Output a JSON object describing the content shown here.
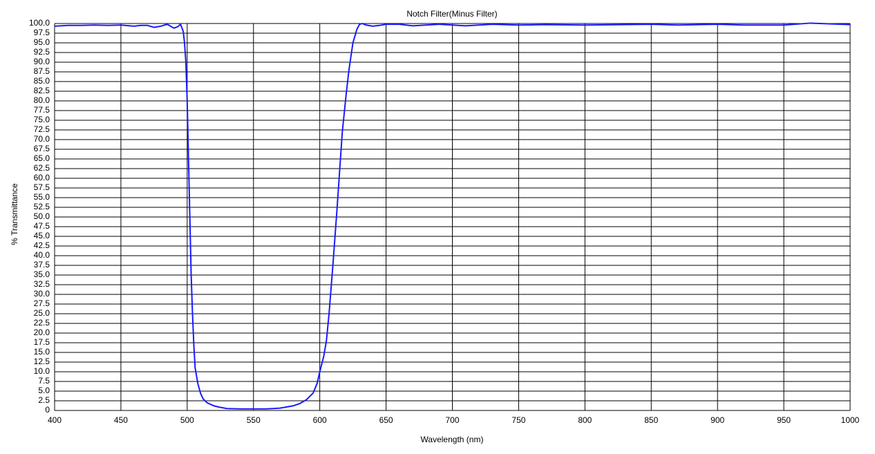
{
  "chart_data": {
    "type": "line",
    "title": "Notch Filter(Minus Filter)",
    "x_label": "Wavelength (nm)",
    "y_label": "% Transmittance",
    "color": "#1a1aff",
    "grid": true,
    "xlim": [
      400,
      1000
    ],
    "ylim": [
      0,
      100
    ],
    "xticks": [
      400,
      450,
      500,
      550,
      600,
      650,
      700,
      750,
      800,
      850,
      900,
      950,
      1000
    ],
    "yticks": [
      0,
      2.5,
      {
        "value": 5,
        "label": "5.0"
      },
      7.5,
      {
        "value": 10,
        "label": "10.0"
      },
      12.5,
      {
        "value": 15,
        "label": "15.0"
      },
      17.5,
      {
        "value": 20,
        "label": "20.0"
      },
      22.5,
      {
        "value": 25,
        "label": "25.0"
      },
      27.5,
      {
        "value": 30,
        "label": "30.0"
      },
      32.5,
      {
        "value": 35,
        "label": "35.0"
      },
      37.5,
      {
        "value": 40,
        "label": "40.0"
      },
      42.5,
      {
        "value": 45,
        "label": "45.0"
      },
      47.5,
      {
        "value": 50,
        "label": "50.0"
      },
      52.5,
      {
        "value": 55,
        "label": "55.0"
      },
      57.5,
      {
        "value": 60,
        "label": "60.0"
      },
      62.5,
      {
        "value": 65,
        "label": "65.0"
      },
      67.5,
      {
        "value": 70,
        "label": "70.0"
      },
      72.5,
      {
        "value": 75,
        "label": "75.0"
      },
      77.5,
      {
        "value": 80,
        "label": "80.0"
      },
      82.5,
      {
        "value": 85,
        "label": "85.0"
      },
      87.5,
      {
        "value": 90,
        "label": "90.0"
      },
      92.5,
      {
        "value": 95,
        "label": "95.0"
      },
      97.5,
      {
        "value": 100,
        "label": "100.0"
      }
    ],
    "x": [
      400,
      410,
      420,
      430,
      440,
      450,
      460,
      465,
      470,
      475,
      480,
      485,
      490,
      493,
      495,
      497,
      498,
      499,
      500,
      501,
      502,
      503,
      504,
      505,
      506,
      508,
      510,
      512,
      515,
      520,
      525,
      530,
      540,
      550,
      560,
      570,
      580,
      585,
      590,
      595,
      598,
      600,
      603,
      605,
      607,
      610,
      613,
      615,
      617,
      620,
      622,
      625,
      628,
      630,
      632,
      635,
      640,
      645,
      650,
      660,
      670,
      680,
      690,
      700,
      710,
      720,
      730,
      750,
      770,
      800,
      850,
      870,
      900,
      920,
      950,
      970,
      1000
    ],
    "values": [
      99.3,
      99.5,
      99.5,
      99.6,
      99.5,
      99.6,
      99.3,
      99.5,
      99.5,
      99.0,
      99.3,
      99.8,
      98.8,
      99.2,
      99.8,
      98,
      95,
      90,
      80,
      65,
      50,
      35,
      25,
      17,
      11,
      7,
      4.5,
      3,
      2,
      1.2,
      0.8,
      0.5,
      0.4,
      0.4,
      0.4,
      0.6,
      1.2,
      1.8,
      2.8,
      4.5,
      7,
      10,
      14,
      18,
      25,
      38,
      52,
      62,
      72,
      82,
      88,
      95,
      98.5,
      99.8,
      100,
      99.6,
      99.3,
      99.5,
      99.8,
      99.8,
      99.4,
      99.6,
      99.8,
      99.6,
      99.4,
      99.6,
      99.8,
      99.6,
      99.7,
      99.6,
      99.8,
      99.6,
      99.8,
      99.6,
      99.6,
      100.1,
      99.7
    ]
  }
}
